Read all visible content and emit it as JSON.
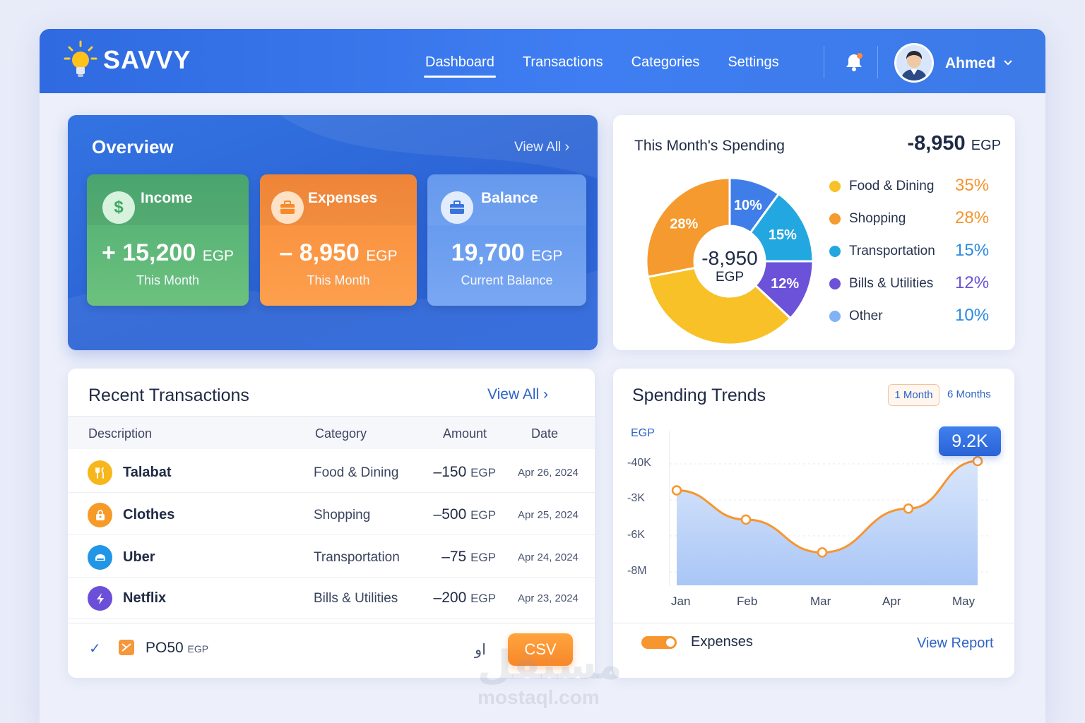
{
  "app": {
    "name": "SAVVY"
  },
  "nav": {
    "items": [
      "Dashboard",
      "Transactions",
      "Categories",
      "Settings"
    ],
    "active": "Dashboard"
  },
  "user": {
    "name": "Ahmed"
  },
  "overview": {
    "title": "Overview",
    "view_all": "View All",
    "cards": [
      {
        "label": "Income",
        "value": "+ 15,200",
        "unit": "EGP",
        "sub": "This Month",
        "color": "#5cb874"
      },
      {
        "label": "Expenses",
        "value": "– 8,950",
        "unit": "EGP",
        "sub": "This Month",
        "color": "#fb8f3c"
      },
      {
        "label": "Balance",
        "value": "19,700",
        "unit": "EGP",
        "sub": "Current Balance",
        "color": "#6a9ef0"
      }
    ]
  },
  "spending": {
    "title": "This Month's Spending",
    "total": "-8,950",
    "unit": "EGP",
    "center_value": "-8,950",
    "center_unit": "EGP",
    "categories": [
      {
        "name": "Food & Dining",
        "pct": "35%",
        "color": "#f7c127"
      },
      {
        "name": "Shopping",
        "pct": "28%",
        "color": "#f59a2e"
      },
      {
        "name": "Transportation",
        "pct": "15%",
        "color": "#22a7e0"
      },
      {
        "name": "Bills & Utilities",
        "pct": "12%",
        "color": "#6b52d9"
      },
      {
        "name": "Other",
        "pct": "10%",
        "color": "#7fb3f5"
      }
    ]
  },
  "chart_data": [
    {
      "type": "pie",
      "title": "This Month's Spending",
      "categories": [
        "Food & Dining",
        "Shopping",
        "Transportation",
        "Bills & Utilities",
        "Other"
      ],
      "values": [
        35,
        28,
        15,
        12,
        10
      ],
      "slice_labels": [
        "",
        "28%",
        "15%",
        "12%",
        "10%"
      ],
      "colors": [
        "#f7c127",
        "#f59a2e",
        "#22a7e0",
        "#6b52d9",
        "#3f7ee8"
      ],
      "legend": "right"
    },
    {
      "type": "area",
      "title": "Spending Trends",
      "categories": [
        "Jan",
        "Feb",
        "Mar",
        "Apr",
        "May"
      ],
      "y_unit_label": "EGP",
      "y_ticks": [
        "-40K",
        "-3K",
        "-6K",
        "-8M"
      ],
      "series": [
        {
          "name": "Expenses",
          "values": [
            2.6,
            1.8,
            0.9,
            2.1,
            3.4
          ]
        }
      ],
      "highlight_label": "9.2K",
      "grid": true
    }
  ],
  "transactions": {
    "title": "Recent Transactions",
    "view_all": "View All",
    "columns": [
      "Description",
      "Category",
      "Amount",
      "Date"
    ],
    "rows": [
      {
        "name": "Talabat",
        "category": "Food & Dining",
        "amount": "–150",
        "unit": "EGP",
        "date": "Apr 26, 2024",
        "icon": "fork-knife-icon",
        "color": "#f8b61d"
      },
      {
        "name": "Clothes",
        "category": "Shopping",
        "amount": "–500",
        "unit": "EGP",
        "date": "Apr 25, 2024",
        "icon": "shopping-bag-icon",
        "color": "#f79a27"
      },
      {
        "name": "Uber",
        "category": "Transportation",
        "amount": "–75",
        "unit": "EGP",
        "date": "Apr 24, 2024",
        "icon": "car-icon",
        "color": "#2196e6"
      },
      {
        "name": "Netflix",
        "category": "Bills & Utilities",
        "amount": "–200",
        "unit": "EGP",
        "date": "Apr 23, 2024",
        "icon": "lightning-icon",
        "color": "#6c4fd8"
      }
    ],
    "footer": {
      "code": "PO50",
      "unit": "EGP",
      "arabic": "او",
      "csv": "CSV"
    }
  },
  "trends": {
    "title": "Spending Trends",
    "tabs": [
      "1 Month",
      "6 Months"
    ],
    "active_tab": "1 Month",
    "y_label": "EGP",
    "y_ticks": [
      "-40K",
      "-3K",
      "-6K",
      "-8M"
    ],
    "x_ticks": [
      "Jan",
      "Feb",
      "Mar",
      "Apr",
      "May"
    ],
    "badge": "9.2K",
    "legend": "Expenses",
    "view_report": "View Report"
  },
  "watermark": {
    "arabic": "مستقل",
    "site": "mostaql.com"
  }
}
